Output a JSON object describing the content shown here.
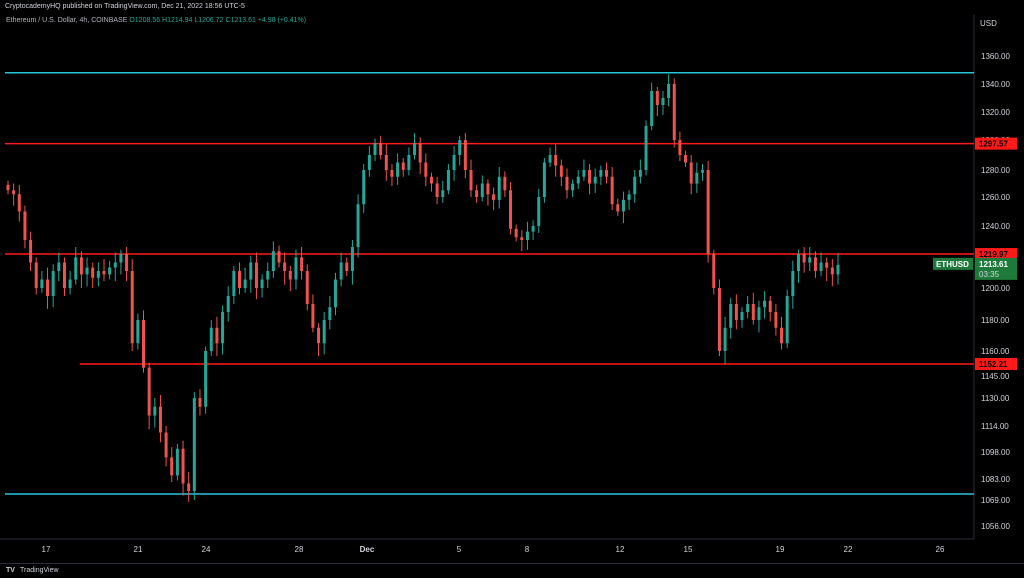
{
  "header": {
    "published": "CryptocademyHQ published on TradingView.com, Dec 21, 2022 18:56 UTC-5"
  },
  "symbol": {
    "name": "Ethereum / U.S. Dollar, 4h, COINBASE",
    "open": "O1208.56",
    "high": "H1214.94",
    "low": "L1206.72",
    "close": "C1213.61",
    "change": "+4.98 (+0.41%)"
  },
  "footer": {
    "brand": "TradingView"
  },
  "chart_data": {
    "type": "candlestick",
    "currency": "USD",
    "x_ticks": [
      "17",
      "21",
      "24",
      "28",
      "Dec",
      "5",
      "8",
      "12",
      "15",
      "19",
      "22",
      "26"
    ],
    "y_ticks": [
      1360,
      1340,
      1320,
      1300,
      1280,
      1260,
      1240,
      1220,
      1200,
      1180,
      1160,
      1145,
      1130,
      1114,
      1098,
      1083,
      1069,
      1056
    ],
    "price_lines": [
      {
        "value": 1348.0,
        "color": "#26c6da",
        "labeled": false
      },
      {
        "value": 1297.57,
        "color": "#ff1a1a",
        "label": "1297.57"
      },
      {
        "value": 1219.97,
        "color": "#ff1a1a",
        "label": "1219.97"
      },
      {
        "value": 1152.21,
        "color": "#ff1a1a",
        "label": "1152.21"
      },
      {
        "value": 1073.0,
        "color": "#26c6da",
        "labeled": false
      }
    ],
    "last_price": {
      "value": 1213.61,
      "ticker": "ETHUSD",
      "label": "1213.61",
      "countdown": "03:35"
    },
    "closes": [
      1265,
      1262,
      1250,
      1230,
      1215,
      1200,
      1205,
      1195,
      1210,
      1215,
      1200,
      1205,
      1218,
      1208,
      1212,
      1206,
      1210,
      1208,
      1212,
      1215,
      1220,
      1210,
      1165,
      1180,
      1150,
      1120,
      1125,
      1110,
      1095,
      1085,
      1100,
      1080,
      1075,
      1130,
      1125,
      1160,
      1175,
      1165,
      1185,
      1195,
      1210,
      1200,
      1205,
      1215,
      1200,
      1205,
      1210,
      1222,
      1215,
      1210,
      1205,
      1218,
      1210,
      1190,
      1175,
      1165,
      1180,
      1188,
      1205,
      1215,
      1210,
      1225,
      1255,
      1280,
      1290,
      1298,
      1290,
      1280,
      1275,
      1285,
      1280,
      1290,
      1298,
      1285,
      1275,
      1270,
      1260,
      1265,
      1280,
      1290,
      1300,
      1280,
      1265,
      1260,
      1270,
      1262,
      1258,
      1275,
      1265,
      1238,
      1232,
      1230,
      1236,
      1240,
      1260,
      1285,
      1290,
      1283,
      1275,
      1265,
      1270,
      1275,
      1280,
      1270,
      1275,
      1280,
      1275,
      1255,
      1250,
      1258,
      1262,
      1275,
      1280,
      1310,
      1335,
      1325,
      1330,
      1340,
      1300,
      1290,
      1285,
      1270,
      1278,
      1280,
      1220,
      1200,
      1160,
      1175,
      1190,
      1180,
      1185,
      1190,
      1180,
      1188,
      1192,
      1185,
      1175,
      1165,
      1195,
      1210,
      1220,
      1215,
      1218,
      1210,
      1215,
      1212,
      1208,
      1213.61
    ]
  }
}
